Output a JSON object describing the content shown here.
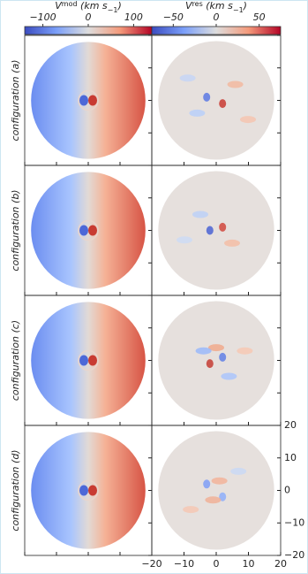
{
  "chart_data": {
    "type": "image-grid",
    "colorbars": [
      {
        "label": [
          "V",
          "mod",
          " (km s",
          "−1",
          ")"
        ],
        "clim": [
          -140,
          140
        ],
        "ticks": [
          {
            "value": -100,
            "label": "−100"
          },
          0,
          100
        ]
      },
      {
        "label": [
          "V",
          "res",
          " (km s",
          "−1",
          ")"
        ],
        "clim": [
          -75,
          75
        ],
        "ticks": [
          {
            "value": -50,
            "label": "−50"
          },
          0,
          50
        ]
      }
    ],
    "rows": [
      "configuration (a)",
      "configuration (b)",
      "configuration (c)",
      "configuration (d)"
    ],
    "xlim": [
      -20,
      20
    ],
    "ylim": [
      -20,
      20
    ],
    "xticks": [
      {
        "value": -20,
        "label": "−20"
      },
      {
        "value": -10,
        "label": "−10"
      },
      0,
      10,
      20
    ],
    "yticks": [
      {
        "value": -20,
        "label": "−20"
      },
      {
        "value": -10,
        "label": "−10"
      },
      0,
      10,
      20
    ]
  }
}
